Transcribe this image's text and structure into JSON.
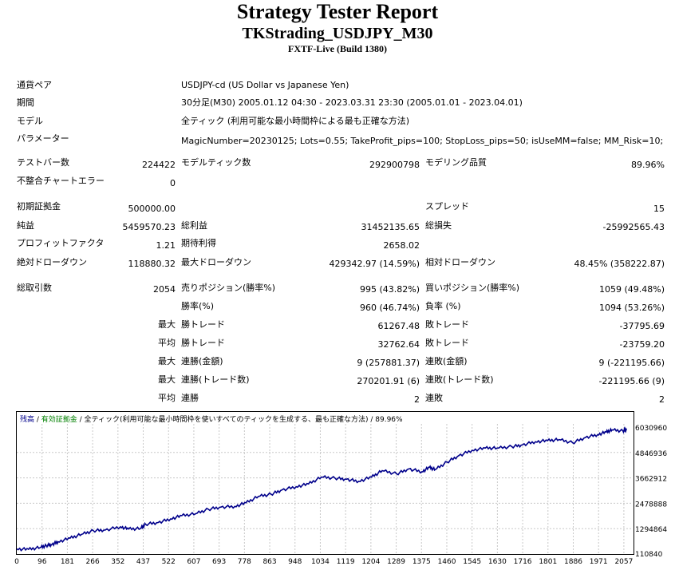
{
  "header": {
    "title": "Strategy Tester Report",
    "subtitle": "TKStrading_USDJPY_M30",
    "build": "FXTF-Live (Build 1380)"
  },
  "info": {
    "symbol_label": "通貨ペア",
    "symbol_value": "USDJPY-cd (US Dollar vs Japanese Yen)",
    "period_label": "期間",
    "period_value": "30分足(M30) 2005.01.12 04:30 - 2023.03.31 23:30 (2005.01.01 - 2023.04.01)",
    "model_label": "モデル",
    "model_value": "全ティック (利用可能な最小時間枠による最も正確な方法)",
    "params_label": "パラメーター",
    "params_value": "MagicNumber=20230125; Lots=0.55; TakeProfit_pips=100; StopLoss_pips=50; isUseMM=false; MM_Risk=10;"
  },
  "stats": {
    "bars_label": "テストバー数",
    "bars_value": "224422",
    "ticks_label": "モデルティック数",
    "ticks_value": "292900798",
    "quality_label": "モデリング品質",
    "quality_value": "89.96%",
    "errors_label": "不整合チャートエラー",
    "errors_value": "0",
    "deposit_label": "初期証拠金",
    "deposit_value": "500000.00",
    "spread_label": "スプレッド",
    "spread_value": "15",
    "net_label": "純益",
    "net_value": "5459570.23",
    "gross_profit_label": "総利益",
    "gross_profit_value": "31452135.65",
    "gross_loss_label": "総損失",
    "gross_loss_value": "-25992565.43",
    "pf_label": "プロフィットファクタ",
    "pf_value": "1.21",
    "expected_label": "期待利得",
    "expected_value": "2658.02",
    "abs_dd_label": "絶対ドローダウン",
    "abs_dd_value": "118880.32",
    "max_dd_label": "最大ドローダウン",
    "max_dd_value": "429342.97 (14.59%)",
    "rel_dd_label": "相対ドローダウン",
    "rel_dd_value": "48.45% (358222.87)",
    "trades_label": "総取引数",
    "trades_value": "2054",
    "short_label": "売りポジション(勝率%)",
    "short_value": "995 (43.82%)",
    "long_label": "買いポジション(勝率%)",
    "long_value": "1059 (49.48%)",
    "win_rate_label": "勝率(%)",
    "win_rate_value": "960 (46.74%)",
    "loss_rate_label": "負率 (%)",
    "loss_rate_value": "1094 (53.26%)",
    "max_word": "最大",
    "avg_word": "平均",
    "largest_win_label": "勝トレード",
    "largest_win_value": "61267.48",
    "largest_loss_label": "敗トレード",
    "largest_loss_value": "-37795.69",
    "avg_win_label": "勝トレード",
    "avg_win_value": "32762.64",
    "avg_loss_label": "敗トレード",
    "avg_loss_value": "-23759.20",
    "cons_wins_label": "連勝(金額)",
    "cons_wins_value": "9 (257881.37)",
    "cons_losses_label": "連敗(金額)",
    "cons_losses_value": "9 (-221195.66)",
    "cons_profit_label": "連勝(トレード数)",
    "cons_profit_value": "270201.91 (6)",
    "cons_loss_label": "連敗(トレード数)",
    "cons_loss_value": "-221195.66 (9)",
    "avg_cons_wins_label": "連勝",
    "avg_cons_wins_value": "2",
    "avg_cons_losses_label": "連敗",
    "avg_cons_losses_value": "2"
  },
  "chart_legend": {
    "balance": "残高",
    "sep": " / ",
    "equity": "有効証拠金",
    "rest": " / 全ティック(利用可能な最小時間枠を使いすべてのティックを生成する、最も正確な方法) / 89.96%"
  },
  "chart_data": {
    "type": "line",
    "xticks": [
      "0",
      "96",
      "181",
      "266",
      "352",
      "437",
      "522",
      "607",
      "693",
      "778",
      "863",
      "948",
      "1034",
      "1119",
      "1204",
      "1289",
      "1375",
      "1460",
      "1545",
      "1630",
      "1716",
      "1801",
      "1886",
      "1971",
      "2057"
    ],
    "yticks": [
      "6030960",
      "4846936",
      "3662912",
      "2478888",
      "1294864",
      "110840"
    ],
    "ylim": [
      110840,
      6030960
    ],
    "xlim": [
      0,
      2090
    ],
    "grid": true,
    "series": [
      {
        "color": "#00008b",
        "x": [
          0,
          40,
          80,
          100,
          120,
          140,
          181,
          220,
          260,
          300,
          352,
          380,
          420,
          437,
          480,
          522,
          560,
          607,
          650,
          693,
          740,
          778,
          820,
          863,
          900,
          948,
          990,
          1034,
          1080,
          1119,
          1160,
          1204,
          1240,
          1289,
          1330,
          1375,
          1400,
          1420,
          1460,
          1500,
          1545,
          1590,
          1630,
          1680,
          1716,
          1760,
          1801,
          1840,
          1886,
          1930,
          1971,
          2000,
          2020,
          2057,
          2070
        ],
        "y": [
          350000,
          330000,
          420000,
          500000,
          560000,
          680000,
          850000,
          1030000,
          1200000,
          1230000,
          1380000,
          1280000,
          1300000,
          1500000,
          1580000,
          1750000,
          1900000,
          1990000,
          2200000,
          2300000,
          2330000,
          2500000,
          2800000,
          2900000,
          3100000,
          3250000,
          3380000,
          3700000,
          3650000,
          3600000,
          3500000,
          3700000,
          4000000,
          3850000,
          4080000,
          3950000,
          4150000,
          4050000,
          4400000,
          4700000,
          4950000,
          5050000,
          5050000,
          5120000,
          5200000,
          5350000,
          5400000,
          5450000,
          5300000,
          5550000,
          5680000,
          5800000,
          5900000,
          5850000,
          5950000
        ]
      }
    ]
  }
}
